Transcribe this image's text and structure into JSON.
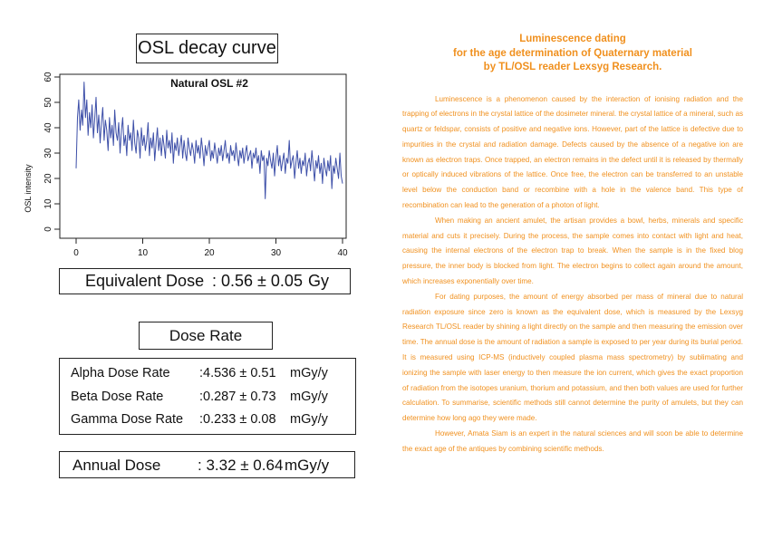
{
  "chart_panel": {
    "title": "OSL decay curve"
  },
  "chart_data": {
    "type": "line",
    "title": "Natural OSL #2",
    "xlabel": "",
    "ylabel": "OSL intensity",
    "xlim": [
      0,
      40
    ],
    "ylim": [
      0,
      60
    ],
    "xticks": [
      "0",
      "10",
      "20",
      "30",
      "40"
    ],
    "yticks": [
      "0",
      "10",
      "20",
      "30",
      "40",
      "50",
      "60"
    ],
    "line_color": "#3d4fa8",
    "series": [
      {
        "x": [
          0,
          0.2,
          0.4,
          0.6,
          0.8,
          1,
          1.2,
          1.4,
          1.6,
          1.8,
          2,
          2.2,
          2.4,
          2.6,
          2.8,
          3,
          3.2,
          3.4,
          3.6,
          3.8,
          4,
          4.2,
          4.4,
          4.6,
          4.8,
          5,
          5.2,
          5.4,
          5.6,
          5.8,
          6,
          6.2,
          6.4,
          6.6,
          6.8,
          7,
          7.2,
          7.4,
          7.6,
          7.8,
          8,
          8.2,
          8.4,
          8.6,
          8.8,
          9,
          9.2,
          9.4,
          9.6,
          9.8,
          10,
          10.2,
          10.4,
          10.6,
          10.8,
          11,
          11.2,
          11.4,
          11.6,
          11.8,
          12,
          12.2,
          12.4,
          12.6,
          12.8,
          13,
          13.2,
          13.4,
          13.6,
          13.8,
          14,
          14.2,
          14.4,
          14.6,
          14.8,
          15,
          15.2,
          15.4,
          15.6,
          15.8,
          16,
          16.2,
          16.4,
          16.6,
          16.8,
          17,
          17.2,
          17.4,
          17.6,
          17.8,
          18,
          18.2,
          18.4,
          18.6,
          18.8,
          19,
          19.2,
          19.4,
          19.6,
          19.8,
          20,
          20.2,
          20.4,
          20.6,
          20.8,
          21,
          21.2,
          21.4,
          21.6,
          21.8,
          22,
          22.2,
          22.4,
          22.6,
          22.8,
          23,
          23.2,
          23.4,
          23.6,
          23.8,
          24,
          24.2,
          24.4,
          24.6,
          24.8,
          25,
          25.2,
          25.4,
          25.6,
          25.8,
          26,
          26.2,
          26.4,
          26.6,
          26.8,
          27,
          27.2,
          27.4,
          27.6,
          27.8,
          28,
          28.2,
          28.4,
          28.6,
          28.8,
          29,
          29.2,
          29.4,
          29.6,
          29.8,
          30,
          30.2,
          30.4,
          30.6,
          30.8,
          31,
          31.2,
          31.4,
          31.6,
          31.8,
          32,
          32.2,
          32.4,
          32.6,
          32.8,
          33,
          33.2,
          33.4,
          33.6,
          33.8,
          34,
          34.2,
          34.4,
          34.6,
          34.8,
          35,
          35.2,
          35.4,
          35.6,
          35.8,
          36,
          36.2,
          36.4,
          36.6,
          36.8,
          37,
          37.2,
          37.4,
          37.6,
          37.8,
          38,
          38.2,
          38.4,
          38.6,
          38.8,
          39,
          39.2,
          39.4,
          39.6,
          39.8,
          40
        ],
        "values": [
          24,
          44,
          51,
          39,
          47,
          41,
          58,
          44,
          51,
          37,
          46,
          40,
          49,
          36,
          44,
          52,
          38,
          45,
          34,
          42,
          48,
          35,
          43,
          39,
          31,
          44,
          36,
          41,
          33,
          47,
          38,
          35,
          42,
          30,
          39,
          44,
          33,
          37,
          29,
          41,
          35,
          38,
          31,
          43,
          34,
          30,
          39,
          36,
          28,
          40,
          33,
          37,
          31,
          35,
          42,
          29,
          36,
          32,
          38,
          27,
          34,
          40,
          31,
          36,
          29,
          37,
          33,
          28,
          39,
          32,
          35,
          30,
          38,
          26,
          34,
          31,
          36,
          29,
          33,
          37,
          28,
          35,
          30,
          27,
          36,
          32,
          29,
          34,
          31,
          26,
          35,
          30,
          33,
          28,
          36,
          31,
          25,
          33,
          29,
          32,
          35,
          27,
          31,
          28,
          34,
          30,
          26,
          32,
          29,
          33,
          27,
          31,
          35,
          28,
          30,
          26,
          33,
          29,
          31,
          27,
          34,
          29,
          25,
          31,
          28,
          32,
          26,
          30,
          33,
          27,
          29,
          31,
          24,
          30,
          28,
          32,
          26,
          29,
          22,
          31,
          27,
          29,
          12,
          28,
          25,
          31,
          27,
          24,
          30,
          21,
          28,
          33,
          25,
          29,
          23,
          27,
          30,
          22,
          28,
          26,
          35,
          24,
          27,
          29,
          20,
          26,
          31,
          24,
          28,
          22,
          27,
          25,
          30,
          21,
          26,
          28,
          23,
          31,
          25,
          19,
          27,
          24,
          29,
          22,
          26,
          18,
          28,
          24,
          21,
          27,
          23,
          29,
          16,
          25,
          22,
          28,
          24,
          20,
          30,
          21,
          18
        ]
      }
    ]
  },
  "equivalent_dose": {
    "label": "Equivalent Dose",
    "value": ": 0.56 ± 0.05",
    "unit": "Gy"
  },
  "dose_rate": {
    "title": "Dose Rate",
    "rows": [
      {
        "label": "Alpha Dose Rate",
        "value": ":4.536 ± 0.51",
        "unit": "mGy/y"
      },
      {
        "label": "Beta Dose Rate",
        "value": ":0.287 ± 0.73",
        "unit": "mGy/y"
      },
      {
        "label": "Gamma Dose Rate",
        "value": ":0.233 ± 0.08",
        "unit": "mGy/y"
      }
    ]
  },
  "annual_dose": {
    "label": "Annual Dose",
    "value": ": 3.32 ± 0.64",
    "unit": "mGy/y"
  },
  "article": {
    "heading_lines": [
      "Luminescence dating",
      "for the age determination of Quaternary material",
      "by TL/OSL reader Lexsyg Research."
    ],
    "paragraphs": [
      "Luminescence is a phenomenon caused by the interaction of ionising radiation and the trapping of electrons in the crystal lattice of the dosimeter mineral. the crystal lattice of a mineral, such as quartz or feldspar, consists of positive and negative ions. However, part of the lattice is defective due to impurities in the crystal and radiation damage. Defects caused by the absence of a negative ion are known as electron traps. Once trapped, an electron remains in the defect until it is released by thermally or optically induced vibrations of the lattice. Once free, the electron can be transferred to an unstable level below the conduction band or recombine with a hole in the valence band. This type of recombination can lead to the generation of a photon of light.",
      "When making an ancient amulet, the artisan provides a bowl, herbs, minerals and specific material and cuts it precisely. During the process, the sample comes into contact with light and heat, causing the internal electrons of the electron trap to break. When the sample is in the fixed blog pressure, the inner body is blocked from light. The electron begins to collect again around the amount, which increases exponentially over time.",
      "For dating purposes, the amount of energy absorbed per mass of mineral due to natural radiation exposure since zero is known as the equivalent dose, which is measured by the Lexsyg Research TL/OSL reader by shining a light directly on the sample and then measuring the emission over time. The annual dose is the amount of radiation a sample is exposed to per year during its burial period. It is measured using ICP-MS (inductively coupled plasma mass spectrometry) by sublimating and ionizing the sample with laser energy to then measure the ion current, which gives the exact proportion of radiation from the isotopes uranium, thorium and potassium, and then both values are used for further calculation. To summarise, scientific methods still cannot determine the purity of amulets, but they can determine how long ago they were made.",
      "However, Amata Siam is an expert in the natural sciences and will soon be able to determine the exact age of the antiques by combining scientific methods."
    ]
  }
}
